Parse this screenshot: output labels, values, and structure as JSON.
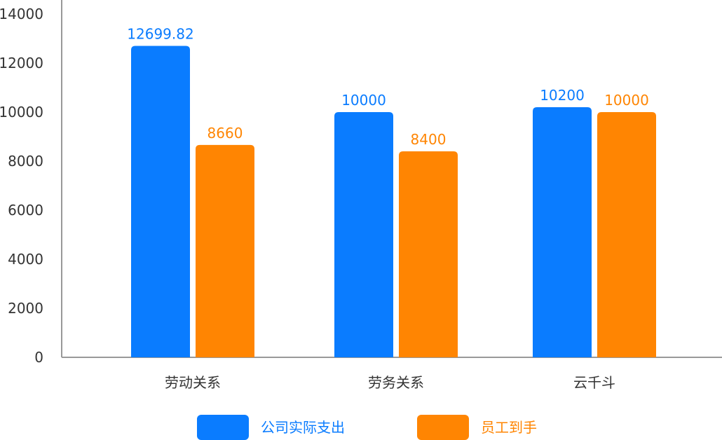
{
  "chart_data": {
    "type": "bar",
    "categories": [
      "劳动关系",
      "劳务关系",
      "云千斗"
    ],
    "series": [
      {
        "name": "公司实际支出",
        "values": [
          12699.82,
          10000,
          10200
        ],
        "color": "#0A7CFF",
        "labels": [
          "12699.82",
          "10000",
          "10200"
        ]
      },
      {
        "name": "员工到手",
        "values": [
          8660,
          8400,
          10000
        ],
        "color": "#FF8502",
        "labels": [
          "8660",
          "8400",
          "10000"
        ]
      }
    ],
    "title": "",
    "xlabel": "",
    "ylabel": "",
    "ylim": [
      0,
      14000
    ],
    "yticks": [
      0,
      2000,
      4000,
      6000,
      8000,
      10000,
      12000,
      14000
    ],
    "ytick_labels": [
      "0",
      "2000",
      "4000",
      "6000",
      "8000",
      "10000",
      "12000",
      "14000"
    ],
    "grid": false,
    "legend_position": "bottom-center",
    "axis_color": "#999999",
    "tick_label_color": "#333333"
  }
}
